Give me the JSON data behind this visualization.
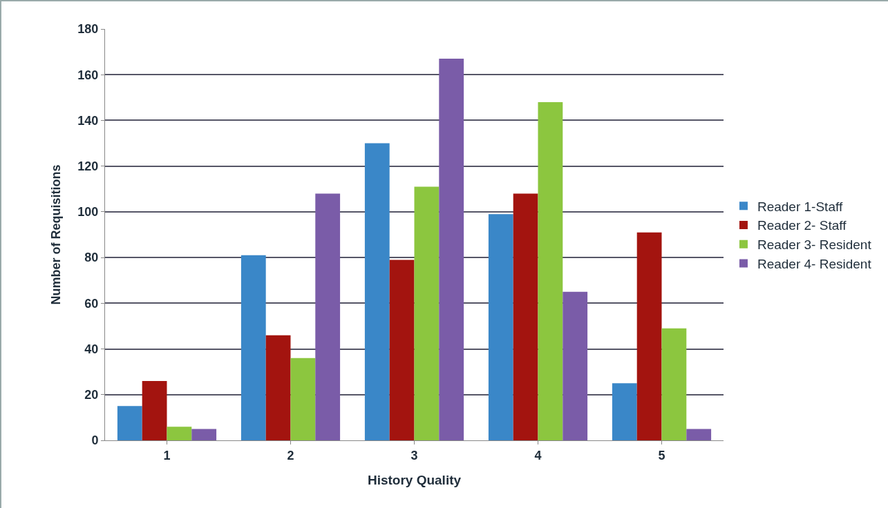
{
  "chart_data": {
    "type": "bar",
    "xlabel": "History Quality",
    "ylabel": "Number of Requisitions",
    "categories": [
      "1",
      "2",
      "3",
      "4",
      "5"
    ],
    "series": [
      {
        "name": "Reader 1-Staff",
        "color": "#3a87c8",
        "values": [
          15,
          81,
          130,
          99,
          25
        ]
      },
      {
        "name": "Reader 2- Staff",
        "color": "#a3140f",
        "values": [
          26,
          46,
          79,
          108,
          91
        ]
      },
      {
        "name": "Reader 3- Resident",
        "color": "#8cc63f",
        "values": [
          6,
          36,
          111,
          148,
          49
        ]
      },
      {
        "name": "Reader 4- Resident",
        "color": "#7a5ca8",
        "values": [
          5,
          108,
          167,
          65,
          5
        ]
      }
    ],
    "ylim": [
      0,
      180
    ],
    "yticks": [
      0,
      20,
      40,
      60,
      80,
      100,
      120,
      140,
      160,
      180
    ],
    "grid": "y",
    "legend": "right"
  }
}
